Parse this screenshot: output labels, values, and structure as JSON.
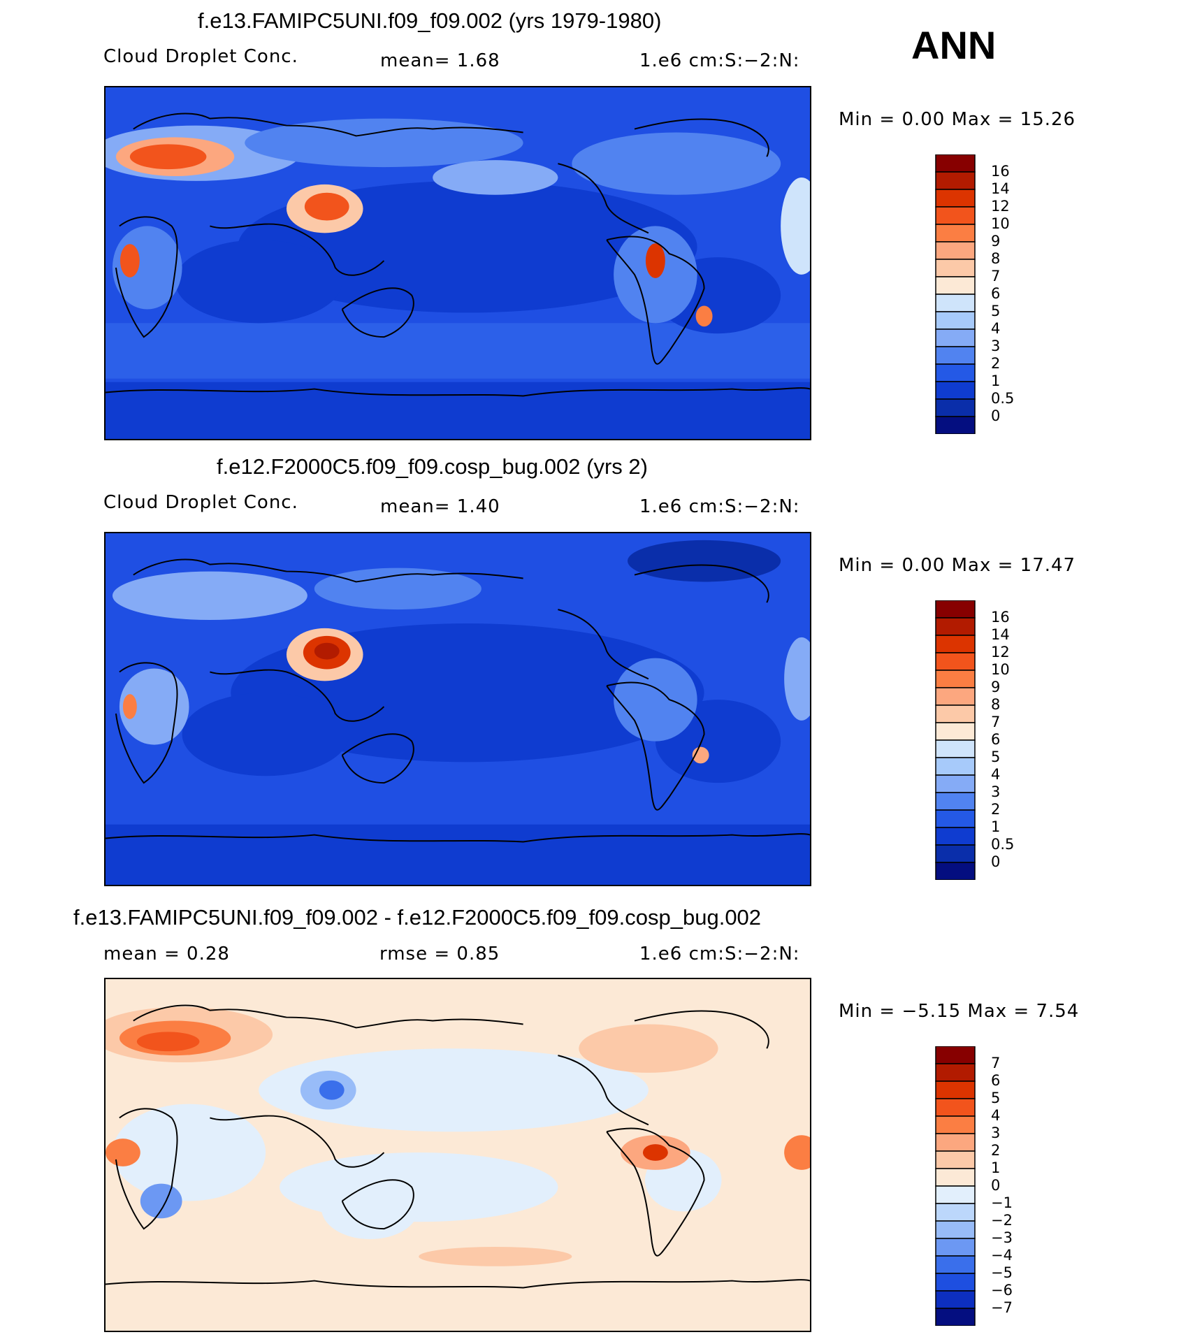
{
  "season": "ANN",
  "panels": [
    {
      "title": "f.e13.FAMIPC5UNI.f09_f09.002 (yrs 1979-1980)",
      "variable": "Cloud Droplet Conc.",
      "stat1": "mean=     1.68",
      "stat2": "",
      "units": "1.e6 cm:S:−2:N:",
      "minmax": "Min =     0.00 Max =    15.26",
      "colorbar_labels": [
        "16",
        "14",
        "12",
        "10",
        "9",
        "8",
        "7",
        "6",
        "5",
        "4",
        "3",
        "2",
        "1",
        "0.5",
        "0"
      ],
      "colorbar_colors": [
        "#870000",
        "#b21b00",
        "#dc3400",
        "#f2541c",
        "#fb7e43",
        "#fca77f",
        "#fcc9a8",
        "#fce9d6",
        "#cfe4fb",
        "#a7cafa",
        "#85abf6",
        "#5183f0",
        "#2459e6",
        "#0f3cd0",
        "#0a2eaa",
        "#040e80"
      ]
    },
    {
      "title": "f.e12.F2000C5.f09_f09.cosp_bug.002 (yrs 2)",
      "variable": "Cloud Droplet Conc.",
      "stat1": "mean=     1.40",
      "stat2": "",
      "units": "1.e6 cm:S:−2:N:",
      "minmax": "Min =     0.00 Max =    17.47",
      "colorbar_labels": [
        "16",
        "14",
        "12",
        "10",
        "9",
        "8",
        "7",
        "6",
        "5",
        "4",
        "3",
        "2",
        "1",
        "0.5",
        "0"
      ],
      "colorbar_colors": [
        "#870000",
        "#b21b00",
        "#dc3400",
        "#f2541c",
        "#fb7e43",
        "#fca77f",
        "#fcc9a8",
        "#fce9d6",
        "#cfe4fb",
        "#a7cafa",
        "#85abf6",
        "#5183f0",
        "#2459e6",
        "#0f3cd0",
        "#0a2eaa",
        "#040e80"
      ]
    },
    {
      "title": "f.e13.FAMIPC5UNI.f09_f09.002 - f.e12.F2000C5.f09_f09.cosp_bug.002",
      "variable": "mean =     0.28",
      "stat1": "rmse =     0.85",
      "stat2": "",
      "units": "1.e6 cm:S:−2:N:",
      "minmax": "Min =   −5.15 Max =     7.54",
      "colorbar_labels": [
        "7",
        "6",
        "5",
        "4",
        "3",
        "2",
        "1",
        "0",
        "−1",
        "−2",
        "−3",
        "−4",
        "−5",
        "−6",
        "−7"
      ],
      "colorbar_colors": [
        "#870000",
        "#b21b00",
        "#dc3400",
        "#f2541c",
        "#fb7e43",
        "#fca77f",
        "#fcc9a8",
        "#fce9d6",
        "#e2effc",
        "#bcd7fb",
        "#98bcf8",
        "#6c98f3",
        "#3a6feb",
        "#1e4fe0",
        "#0d2fc0",
        "#040e80"
      ]
    }
  ],
  "map_colors": {
    "ocean_bg_1": "#1f4fe3",
    "ocean_bg_2": "#1f4fe3",
    "ocean_bg_3": "#fce9d6",
    "coast": "#000000"
  }
}
